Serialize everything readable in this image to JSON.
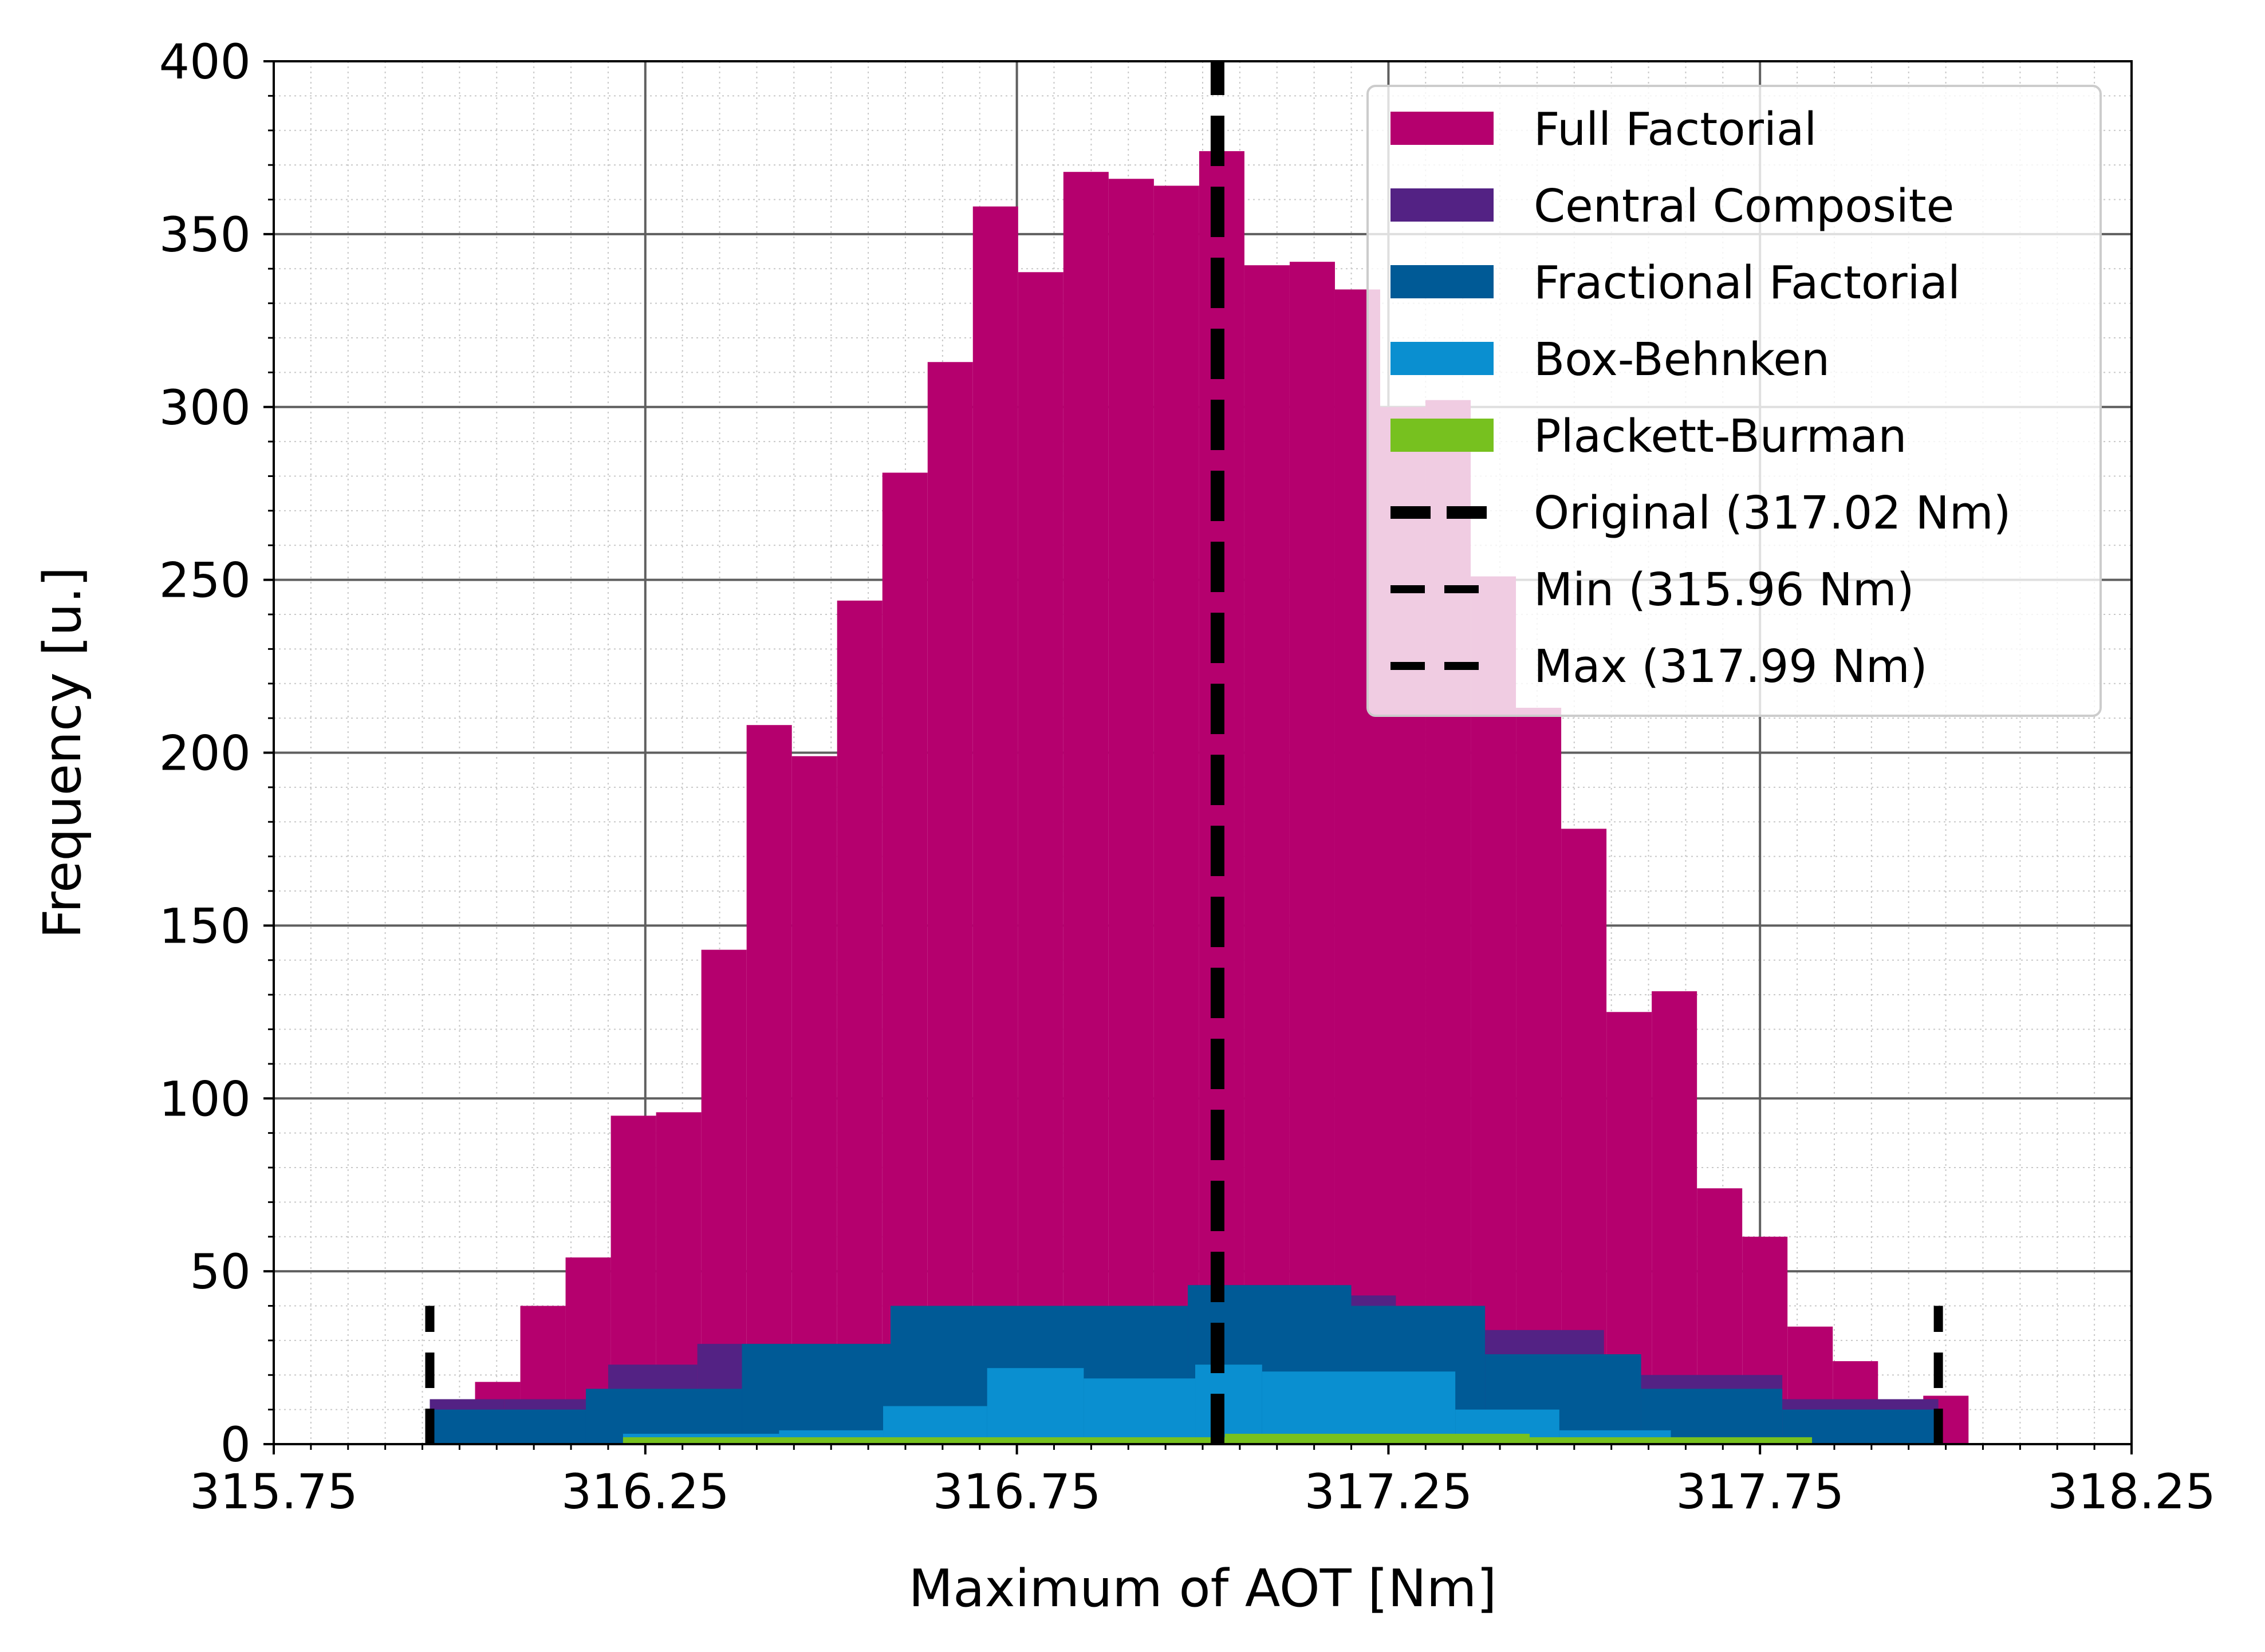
{
  "chart_data": {
    "type": "histogram",
    "xlabel": "Maximum of AOT [Nm]",
    "ylabel": "Frequency [u.]",
    "xlim": [
      315.75,
      318.25
    ],
    "ylim": [
      0,
      400
    ],
    "xticks": [
      315.75,
      316.25,
      316.75,
      317.25,
      317.75,
      318.25
    ],
    "xtick_labels": [
      "315.75",
      "316.25",
      "316.75",
      "317.25",
      "317.75",
      "318.25"
    ],
    "yticks": [
      0,
      50,
      100,
      150,
      200,
      250,
      300,
      350,
      400
    ],
    "ytick_labels": [
      "0",
      "50",
      "100",
      "150",
      "200",
      "250",
      "300",
      "350",
      "400"
    ],
    "grid": {
      "major": true,
      "minor": true
    },
    "legend_position": "top-right",
    "series": [
      {
        "name": "Full Factorial",
        "color": "#b5006e",
        "bin_start": 315.96,
        "bin_width": 0.0609,
        "values": [
          13,
          18,
          40,
          54,
          95,
          96,
          143,
          208,
          199,
          244,
          281,
          313,
          358,
          339,
          368,
          366,
          364,
          374,
          341,
          342,
          334,
          300,
          302,
          251,
          213,
          178,
          125,
          131,
          74,
          60,
          34,
          24,
          11,
          14
        ]
      },
      {
        "name": "Central Composite",
        "color": "#532284",
        "segments": [
          {
            "x0": 315.96,
            "x1": 316.06,
            "value": 13
          },
          {
            "x0": 316.06,
            "x1": 316.2,
            "value": 13
          },
          {
            "x0": 316.2,
            "x1": 316.32,
            "value": 23
          },
          {
            "x0": 316.32,
            "x1": 316.58,
            "value": 29
          },
          {
            "x0": 316.58,
            "x1": 316.99,
            "value": 40
          },
          {
            "x0": 316.99,
            "x1": 317.13,
            "value": 46
          },
          {
            "x0": 317.13,
            "x1": 317.26,
            "value": 43
          },
          {
            "x0": 317.26,
            "x1": 317.38,
            "value": 40
          },
          {
            "x0": 317.38,
            "x1": 317.54,
            "value": 33
          },
          {
            "x0": 317.54,
            "x1": 317.78,
            "value": 20
          },
          {
            "x0": 317.78,
            "x1": 317.99,
            "value": 13
          }
        ]
      },
      {
        "name": "Fractional Factorial",
        "color": "#005a96",
        "segments": [
          {
            "x0": 315.96,
            "x1": 316.17,
            "value": 10
          },
          {
            "x0": 316.17,
            "x1": 316.38,
            "value": 16
          },
          {
            "x0": 316.38,
            "x1": 316.58,
            "value": 29
          },
          {
            "x0": 316.58,
            "x1": 316.98,
            "value": 40
          },
          {
            "x0": 316.98,
            "x1": 317.2,
            "value": 46
          },
          {
            "x0": 317.2,
            "x1": 317.38,
            "value": 40
          },
          {
            "x0": 317.38,
            "x1": 317.59,
            "value": 26
          },
          {
            "x0": 317.59,
            "x1": 317.78,
            "value": 16
          },
          {
            "x0": 317.78,
            "x1": 317.99,
            "value": 10
          }
        ]
      },
      {
        "name": "Box-Behnken",
        "color": "#0a8fd0",
        "segments": [
          {
            "x0": 316.22,
            "x1": 316.43,
            "value": 3
          },
          {
            "x0": 316.43,
            "x1": 316.57,
            "value": 4
          },
          {
            "x0": 316.57,
            "x1": 316.71,
            "value": 11
          },
          {
            "x0": 316.71,
            "x1": 316.84,
            "value": 22
          },
          {
            "x0": 316.84,
            "x1": 316.99,
            "value": 19
          },
          {
            "x0": 316.99,
            "x1": 317.08,
            "value": 23
          },
          {
            "x0": 317.08,
            "x1": 317.34,
            "value": 21
          },
          {
            "x0": 317.34,
            "x1": 317.48,
            "value": 10
          },
          {
            "x0": 317.48,
            "x1": 317.63,
            "value": 4
          }
        ]
      },
      {
        "name": "Plackett-Burman",
        "color": "#77c11f",
        "segments": [
          {
            "x0": 316.22,
            "x1": 317.03,
            "value": 2
          },
          {
            "x0": 317.03,
            "x1": 317.44,
            "value": 3
          },
          {
            "x0": 317.44,
            "x1": 317.82,
            "value": 2
          }
        ]
      }
    ],
    "reference_lines": [
      {
        "name": "Original (317.02 Nm)",
        "x": 317.02,
        "ymax": 400,
        "style": "thick-dash",
        "color": "#000000"
      },
      {
        "name": "Min (315.96 Nm)",
        "x": 315.96,
        "ymax": 40,
        "style": "dash",
        "color": "#000000"
      },
      {
        "name": "Max (317.99 Nm)",
        "x": 317.99,
        "ymax": 40,
        "style": "dash",
        "color": "#000000"
      }
    ]
  }
}
